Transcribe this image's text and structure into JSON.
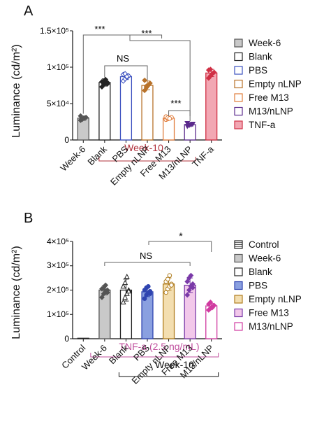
{
  "panel_a": {
    "label": "A",
    "ylabel": "Luminance (cd/m²)",
    "tick_labels": [
      "0",
      "5×10⁴",
      "1×10⁵",
      "1.5×10⁵"
    ],
    "bracket_label": "Week-10",
    "bracket_color": "#b0303b",
    "significance": [
      "***",
      "***",
      "NS",
      "***"
    ]
  },
  "panel_b": {
    "label": "B",
    "ylabel": "Luminance (cd/m²)",
    "tick_labels": [
      "0",
      "1×10⁵",
      "2×10⁵",
      "3×10⁵",
      "4×10⁵"
    ],
    "tnf_label": "TNF-a (2.5 ng/mL)",
    "tnf_color": "#c0509e",
    "bracket_label": "Week-10",
    "significance": [
      "NS",
      "*"
    ]
  },
  "chart_data": [
    {
      "type": "bar",
      "panel": "A",
      "categories": [
        "Week-6",
        "Blank",
        "PBS",
        "Empty nLNP",
        "Free M13",
        "M13/nLNP",
        "TNF-a"
      ],
      "ylabel": "Luminance (cd/m²)",
      "ylim": [
        0,
        150000
      ],
      "legend_position": "right",
      "grid": false,
      "series": [
        {
          "name": "Week-6",
          "value": 30000,
          "error": 3000,
          "color": "#c9c9c9",
          "edge": "#555555",
          "marker": "diamond",
          "points": [
            27000,
            29000,
            30000,
            31000,
            33000,
            28500
          ]
        },
        {
          "name": "Blank",
          "value": 79000,
          "error": 5000,
          "color": "#ffffff",
          "edge": "#222222",
          "marker": "diamond",
          "points": [
            73000,
            76000,
            78000,
            79000,
            80000,
            81000,
            83000,
            77000
          ]
        },
        {
          "name": "PBS",
          "value": 87000,
          "error": 4000,
          "color": "#ffffff",
          "edge": "#3a4fbf",
          "marker": "diamond-open",
          "points": [
            81000,
            84000,
            86000,
            88000,
            90000,
            91000,
            87000
          ]
        },
        {
          "name": "Empty nLNP",
          "value": 75000,
          "error": 6000,
          "color": "#ffffff",
          "edge": "#b8722a",
          "marker": "diamond",
          "points": [
            68000,
            72000,
            75000,
            78000,
            82000,
            74000
          ]
        },
        {
          "name": "Free M13",
          "value": 30000,
          "error": 2000,
          "color": "#ffffff",
          "edge": "#e07b39",
          "marker": "circle-open",
          "points": [
            28000,
            29000,
            30000,
            31000,
            32000,
            30500,
            29500
          ]
        },
        {
          "name": "M13/nLNP",
          "value": 21000,
          "error": 2000,
          "color": "#ffffff",
          "edge": "#5b2a8c",
          "marker": "triangle-down",
          "points": [
            19000,
            20000,
            21000,
            22000,
            23000
          ]
        },
        {
          "name": "TNF-a",
          "value": 92000,
          "error": 5000,
          "color": "#f2a7b3",
          "edge": "#d03045",
          "marker": "diamond",
          "points": [
            85000,
            88000,
            91000,
            93000,
            96000,
            97000
          ]
        }
      ]
    },
    {
      "type": "bar",
      "panel": "B",
      "categories": [
        "Control",
        "Week-6",
        "Blank",
        "PBS",
        "Empty nLNP",
        "Free M13",
        "M13/nLNP"
      ],
      "ylabel": "Luminance (cd/m²)",
      "ylim": [
        0,
        400000
      ],
      "legend_position": "right",
      "grid": false,
      "series": [
        {
          "name": "Control",
          "value": 2000,
          "error": 0,
          "color": "#ffffff",
          "edge": "#222222",
          "marker": "none",
          "points": []
        },
        {
          "name": "Week-6",
          "value": 200000,
          "error": 20000,
          "color": "#c9c9c9",
          "edge": "#555555",
          "marker": "diamond",
          "points": [
            170000,
            185000,
            195000,
            200000,
            205000,
            210000,
            220000,
            190000
          ]
        },
        {
          "name": "Blank",
          "value": 200000,
          "error": 45000,
          "color": "#ffffff",
          "edge": "#222222",
          "marker": "triangle-open",
          "points": [
            150000,
            170000,
            185000,
            200000,
            215000,
            230000,
            255000,
            195000
          ]
        },
        {
          "name": "PBS",
          "value": 193000,
          "error": 20000,
          "color": "#8aa0e0",
          "edge": "#2f44b0",
          "marker": "circle",
          "points": [
            165000,
            180000,
            188000,
            195000,
            200000,
            210000,
            215000,
            185000
          ]
        },
        {
          "name": "Empty nLNP",
          "value": 225000,
          "error": 25000,
          "color": "#f3deb0",
          "edge": "#b07d20",
          "marker": "circle-open",
          "points": [
            190000,
            205000,
            215000,
            225000,
            235000,
            245000,
            260000,
            220000
          ]
        },
        {
          "name": "Free M13",
          "value": 220000,
          "error": 30000,
          "color": "#f2c8ea",
          "edge": "#7a3aa8",
          "marker": "diamond",
          "points": [
            180000,
            200000,
            215000,
            225000,
            235000,
            250000,
            260000,
            210000
          ]
        },
        {
          "name": "M13/nLNP",
          "value": 135000,
          "error": 10000,
          "color": "#ffffff",
          "edge": "#d03aa0",
          "marker": "diamond",
          "points": [
            118000,
            125000,
            132000,
            137000,
            142000,
            150000,
            128000
          ]
        }
      ]
    }
  ]
}
